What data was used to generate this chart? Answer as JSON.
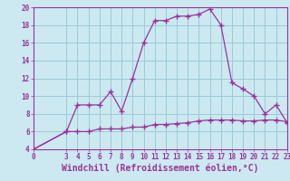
{
  "xlabel": "Windchill (Refroidissement éolien,°C)",
  "background_color": "#cce8f0",
  "grid_color": "#99ccd9",
  "line_color": "#993399",
  "x_hours": [
    0,
    3,
    4,
    5,
    6,
    7,
    8,
    9,
    10,
    11,
    12,
    13,
    14,
    15,
    16,
    17,
    18,
    19,
    20,
    21,
    22,
    23
  ],
  "temp_values": [
    4,
    6,
    9,
    9,
    9,
    10.5,
    8.3,
    12,
    16,
    18.5,
    18.5,
    19,
    19,
    19.2,
    19.8,
    18,
    11.5,
    10.8,
    10,
    8,
    9,
    7
  ],
  "windchill_values": [
    4,
    6,
    6,
    6,
    6.3,
    6.3,
    6.3,
    6.5,
    6.5,
    6.8,
    6.8,
    6.9,
    7.0,
    7.2,
    7.3,
    7.3,
    7.3,
    7.2,
    7.2,
    7.3,
    7.3,
    7.1
  ],
  "ylim": [
    4,
    20
  ],
  "xlim": [
    0,
    23
  ],
  "yticks": [
    4,
    6,
    8,
    10,
    12,
    14,
    16,
    18,
    20
  ],
  "xticks": [
    0,
    3,
    4,
    5,
    6,
    7,
    8,
    9,
    10,
    11,
    12,
    13,
    14,
    15,
    16,
    17,
    18,
    19,
    20,
    21,
    22,
    23
  ],
  "marker": "+",
  "marker_size": 4,
  "line_width": 0.9,
  "xlabel_fontsize": 7,
  "tick_fontsize": 5.5
}
